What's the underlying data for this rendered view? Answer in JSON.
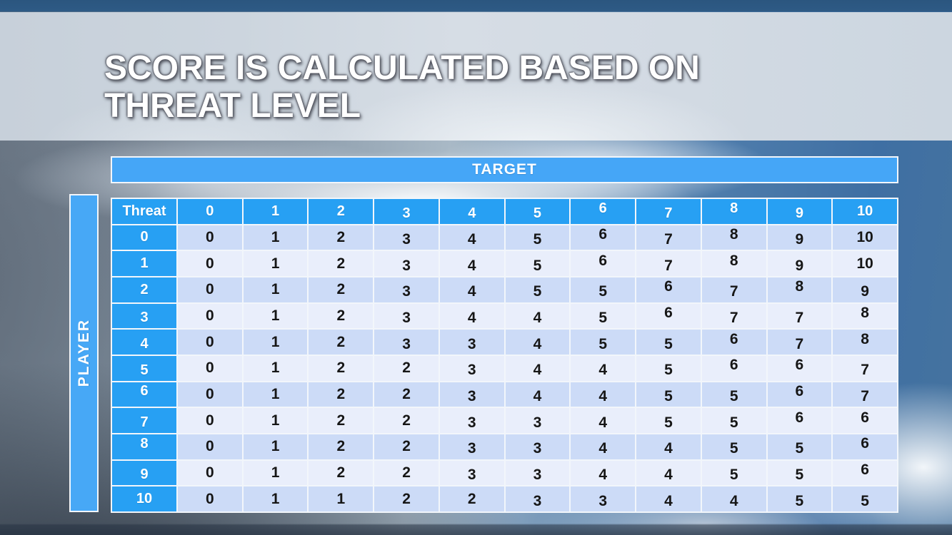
{
  "slide": {
    "title_line1": "SCORE IS CALCULATED BASED ON",
    "title_line2": "THREAT LEVEL"
  },
  "matrix": {
    "target_label": "TARGET",
    "player_label": "PLAYER",
    "corner_label": "Threat",
    "column_headers": [
      "0",
      "1",
      "2",
      "3",
      "4",
      "5",
      "6",
      "7",
      "8",
      "9",
      "10"
    ],
    "rows": [
      {
        "threat": "0",
        "scores": [
          0,
          1,
          2,
          3,
          4,
          5,
          6,
          7,
          8,
          9,
          10
        ]
      },
      {
        "threat": "1",
        "scores": [
          0,
          1,
          2,
          3,
          4,
          5,
          6,
          7,
          8,
          9,
          10
        ]
      },
      {
        "threat": "2",
        "scores": [
          0,
          1,
          2,
          3,
          4,
          5,
          5,
          6,
          7,
          8,
          9
        ]
      },
      {
        "threat": "3",
        "scores": [
          0,
          1,
          2,
          3,
          4,
          4,
          5,
          6,
          7,
          7,
          8
        ]
      },
      {
        "threat": "4",
        "scores": [
          0,
          1,
          2,
          3,
          3,
          4,
          5,
          5,
          6,
          7,
          8
        ]
      },
      {
        "threat": "5",
        "scores": [
          0,
          1,
          2,
          2,
          3,
          4,
          4,
          5,
          6,
          6,
          7
        ]
      },
      {
        "threat": "6",
        "scores": [
          0,
          1,
          2,
          2,
          3,
          4,
          4,
          5,
          5,
          6,
          7
        ]
      },
      {
        "threat": "7",
        "scores": [
          0,
          1,
          2,
          2,
          3,
          3,
          4,
          5,
          5,
          6,
          6
        ]
      },
      {
        "threat": "8",
        "scores": [
          0,
          1,
          2,
          2,
          3,
          3,
          4,
          4,
          5,
          5,
          6
        ]
      },
      {
        "threat": "9",
        "scores": [
          0,
          1,
          2,
          2,
          3,
          3,
          4,
          4,
          5,
          5,
          6
        ]
      },
      {
        "threat": "10",
        "scores": [
          0,
          1,
          1,
          2,
          2,
          3,
          3,
          4,
          4,
          5,
          5
        ]
      }
    ]
  },
  "chart_data": {
    "type": "table",
    "title": "Score is calculated based on threat level",
    "column_axis_label": "TARGET",
    "row_axis_label": "PLAYER",
    "corner_label": "Threat",
    "columns": [
      "0",
      "1",
      "2",
      "3",
      "4",
      "5",
      "6",
      "7",
      "8",
      "9",
      "10"
    ],
    "rows": [
      {
        "player_threat": "0",
        "values": [
          0,
          1,
          2,
          3,
          4,
          5,
          6,
          7,
          8,
          9,
          10
        ]
      },
      {
        "player_threat": "1",
        "values": [
          0,
          1,
          2,
          3,
          4,
          5,
          6,
          7,
          8,
          9,
          10
        ]
      },
      {
        "player_threat": "2",
        "values": [
          0,
          1,
          2,
          3,
          4,
          5,
          5,
          6,
          7,
          8,
          9
        ]
      },
      {
        "player_threat": "3",
        "values": [
          0,
          1,
          2,
          3,
          4,
          4,
          5,
          6,
          7,
          7,
          8
        ]
      },
      {
        "player_threat": "4",
        "values": [
          0,
          1,
          2,
          3,
          3,
          4,
          5,
          5,
          6,
          7,
          8
        ]
      },
      {
        "player_threat": "5",
        "values": [
          0,
          1,
          2,
          2,
          3,
          4,
          4,
          5,
          6,
          6,
          7
        ]
      },
      {
        "player_threat": "6",
        "values": [
          0,
          1,
          2,
          2,
          3,
          4,
          4,
          5,
          5,
          6,
          7
        ]
      },
      {
        "player_threat": "7",
        "values": [
          0,
          1,
          2,
          2,
          3,
          3,
          4,
          5,
          5,
          6,
          6
        ]
      },
      {
        "player_threat": "8",
        "values": [
          0,
          1,
          2,
          2,
          3,
          3,
          4,
          4,
          5,
          5,
          6
        ]
      },
      {
        "player_threat": "9",
        "values": [
          0,
          1,
          2,
          2,
          3,
          3,
          4,
          4,
          5,
          5,
          6
        ]
      },
      {
        "player_threat": "10",
        "values": [
          0,
          1,
          1,
          2,
          2,
          3,
          3,
          4,
          4,
          5,
          5
        ]
      }
    ]
  },
  "colors": {
    "header_blue": "#27A0F3",
    "axis_bar_blue": "#46A7F6",
    "row_even": "#CCDBF7",
    "row_odd": "#E9EEFB",
    "gridline": "#F2F6FB",
    "body_text": "#161616",
    "header_text": "#FFFFFF",
    "title_band": "#D0D8E1"
  }
}
